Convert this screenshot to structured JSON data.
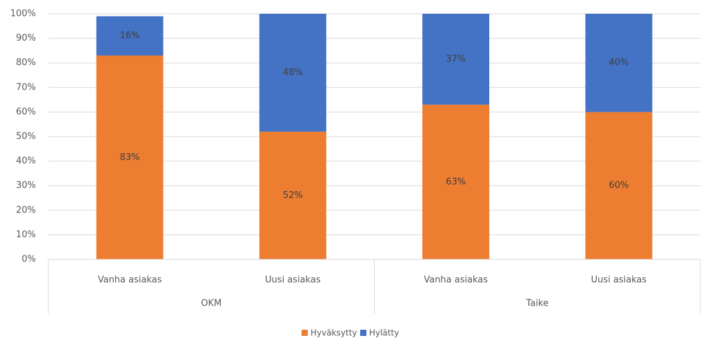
{
  "chart_data": {
    "type": "stacked_bar_100",
    "groups": [
      {
        "name": "OKM",
        "categories": [
          "Vanha asiakas",
          "Uusi asiakas"
        ]
      },
      {
        "name": "Taike",
        "categories": [
          "Vanha asiakas",
          "Uusi asiakas"
        ]
      }
    ],
    "series": [
      {
        "name": "Hyväksytty",
        "color": "#ed7d31",
        "values": [
          83,
          52,
          63,
          60
        ],
        "value_labels": [
          "83%",
          "52%",
          "63%",
          "60%"
        ]
      },
      {
        "name": "Hylätty",
        "color": "#4472c4",
        "values": [
          16,
          48,
          37,
          40
        ],
        "value_labels": [
          "16%",
          "48%",
          "37%",
          "40%"
        ]
      }
    ],
    "ylim": [
      0,
      100
    ],
    "yticks": [
      {
        "value": 0,
        "label": "0%"
      },
      {
        "value": 10,
        "label": "10%"
      },
      {
        "value": 20,
        "label": "20%"
      },
      {
        "value": 30,
        "label": "30%"
      },
      {
        "value": 40,
        "label": "40%"
      },
      {
        "value": 50,
        "label": "50%"
      },
      {
        "value": 60,
        "label": "60%"
      },
      {
        "value": 70,
        "label": "70%"
      },
      {
        "value": 80,
        "label": "80%"
      },
      {
        "value": 90,
        "label": "90%"
      },
      {
        "value": 100,
        "label": "100%"
      }
    ],
    "grid": true,
    "legend": "bottom"
  }
}
